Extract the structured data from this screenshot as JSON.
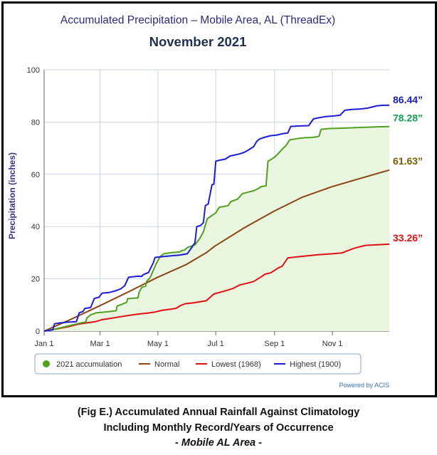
{
  "chart_data": {
    "type": "line",
    "title": "Accumulated Precipitation – Mobile Area, AL (ThreadEx)",
    "subtitle": "November 2021",
    "ylabel": "Precipitation (inches)",
    "xlabel": "",
    "ylim": [
      0,
      100
    ],
    "xlim_day_of_year": [
      1,
      365
    ],
    "y_ticks": [
      "0",
      "20",
      "40",
      "60",
      "80",
      "100"
    ],
    "x_ticks": [
      {
        "day": 1,
        "label": "Jan 1"
      },
      {
        "day": 60,
        "label": "Mar 1"
      },
      {
        "day": 121,
        "label": "May 1"
      },
      {
        "day": 182,
        "label": "Jul 1"
      },
      {
        "day": 244,
        "label": "Sep 1"
      },
      {
        "day": 305,
        "label": "Nov 1"
      }
    ],
    "grid": true,
    "legend_position": "bottom",
    "credit": "Powered by ACIS",
    "series": [
      {
        "name": "2021 accumulation",
        "color": "#52a01f",
        "fill": "#e9f5df",
        "end_label": "78.28”",
        "end_label_color": "#13a055",
        "points": [
          [
            1,
            0
          ],
          [
            8,
            0.4
          ],
          [
            14,
            0.9
          ],
          [
            22,
            1.6
          ],
          [
            30,
            2.3
          ],
          [
            38,
            3.0
          ],
          [
            45,
            3.5
          ],
          [
            46,
            5.0
          ],
          [
            50,
            6.2
          ],
          [
            56,
            7.0
          ],
          [
            62,
            7.2
          ],
          [
            70,
            7.5
          ],
          [
            77,
            7.8
          ],
          [
            78,
            9.6
          ],
          [
            84,
            10.4
          ],
          [
            88,
            11.0
          ],
          [
            89,
            12.4
          ],
          [
            96,
            12.6
          ],
          [
            100,
            12.7
          ],
          [
            101,
            14.7
          ],
          [
            104,
            16.8
          ],
          [
            108,
            17.2
          ],
          [
            109,
            19.0
          ],
          [
            113,
            20.6
          ],
          [
            116,
            23.2
          ],
          [
            119,
            25.6
          ],
          [
            123,
            28.4
          ],
          [
            127,
            29.6
          ],
          [
            135,
            30.0
          ],
          [
            144,
            30.3
          ],
          [
            146,
            30.8
          ],
          [
            149,
            31.0
          ],
          [
            152,
            32.0
          ],
          [
            160,
            33.0
          ],
          [
            165,
            35.4
          ],
          [
            169,
            38.0
          ],
          [
            173,
            43.0
          ],
          [
            177,
            44.0
          ],
          [
            182,
            45.2
          ],
          [
            184,
            46.5
          ],
          [
            186,
            47.4
          ],
          [
            195,
            48.0
          ],
          [
            198,
            49.6
          ],
          [
            205,
            50.5
          ],
          [
            210,
            52.6
          ],
          [
            216,
            53.2
          ],
          [
            222,
            53.7
          ],
          [
            227,
            54.6
          ],
          [
            230,
            55.3
          ],
          [
            235,
            55.6
          ],
          [
            237,
            65.0
          ],
          [
            240,
            65.6
          ],
          [
            244,
            66.6
          ],
          [
            247,
            67.6
          ],
          [
            252,
            69.6
          ],
          [
            256,
            71.0
          ],
          [
            260,
            73.2
          ],
          [
            265,
            73.5
          ],
          [
            270,
            73.8
          ],
          [
            276,
            74.0
          ],
          [
            282,
            74.1
          ],
          [
            288,
            74.3
          ],
          [
            291,
            74.6
          ],
          [
            293,
            77.2
          ],
          [
            300,
            77.5
          ],
          [
            320,
            77.7
          ],
          [
            340,
            78.0
          ],
          [
            355,
            78.2
          ],
          [
            365,
            78.28
          ]
        ]
      },
      {
        "name": "Normal",
        "color": "#8b4513",
        "end_label": "61.63”",
        "end_label_color": "#7a5a00",
        "points": [
          [
            1,
            0
          ],
          [
            31,
            4.8
          ],
          [
            59,
            9.6
          ],
          [
            90,
            15.0
          ],
          [
            120,
            20.5
          ],
          [
            151,
            25.5
          ],
          [
            172,
            30.0
          ],
          [
            181,
            32.5
          ],
          [
            212,
            39.5
          ],
          [
            243,
            45.8
          ],
          [
            273,
            51.2
          ],
          [
            304,
            55.2
          ],
          [
            334,
            58.4
          ],
          [
            365,
            61.63
          ]
        ]
      },
      {
        "name": "Lowest (1968)",
        "color": "#e01010",
        "end_label": "33.26”",
        "end_label_color": "#e01010",
        "points": [
          [
            1,
            0
          ],
          [
            9,
            0.5
          ],
          [
            18,
            1.1
          ],
          [
            28,
            1.8
          ],
          [
            36,
            2.6
          ],
          [
            45,
            3.1
          ],
          [
            55,
            3.6
          ],
          [
            62,
            4.4
          ],
          [
            70,
            4.8
          ],
          [
            80,
            5.4
          ],
          [
            90,
            6.0
          ],
          [
            100,
            6.5
          ],
          [
            110,
            6.9
          ],
          [
            118,
            7.3
          ],
          [
            126,
            8.0
          ],
          [
            133,
            8.3
          ],
          [
            140,
            8.7
          ],
          [
            145,
            9.8
          ],
          [
            150,
            10.5
          ],
          [
            158,
            10.8
          ],
          [
            165,
            11.2
          ],
          [
            172,
            11.6
          ],
          [
            180,
            14.2
          ],
          [
            186,
            14.8
          ],
          [
            193,
            15.5
          ],
          [
            200,
            16.3
          ],
          [
            207,
            17.6
          ],
          [
            215,
            18.3
          ],
          [
            222,
            19.0
          ],
          [
            230,
            20.8
          ],
          [
            234,
            21.8
          ],
          [
            240,
            22.3
          ],
          [
            248,
            24.2
          ],
          [
            252,
            24.8
          ],
          [
            258,
            28.0
          ],
          [
            265,
            28.3
          ],
          [
            275,
            28.7
          ],
          [
            290,
            29.2
          ],
          [
            305,
            29.6
          ],
          [
            315,
            29.9
          ],
          [
            322,
            30.9
          ],
          [
            328,
            31.7
          ],
          [
            333,
            32.2
          ],
          [
            340,
            32.8
          ],
          [
            350,
            33.0
          ],
          [
            365,
            33.26
          ]
        ]
      },
      {
        "name": "Highest (1900)",
        "color": "#1c1cd8",
        "end_label": "86.44”",
        "end_label_color": "#1a1ab4",
        "points": [
          [
            1,
            0
          ],
          [
            10,
            0.5
          ],
          [
            12,
            2.8
          ],
          [
            17,
            3.1
          ],
          [
            25,
            3.4
          ],
          [
            35,
            3.6
          ],
          [
            38,
            7.0
          ],
          [
            42,
            7.5
          ],
          [
            44,
            8.7
          ],
          [
            50,
            9.0
          ],
          [
            54,
            12.5
          ],
          [
            59,
            13.0
          ],
          [
            62,
            14.5
          ],
          [
            70,
            14.8
          ],
          [
            77,
            15.5
          ],
          [
            82,
            16.2
          ],
          [
            86,
            17.4
          ],
          [
            90,
            20.6
          ],
          [
            100,
            21.0
          ],
          [
            104,
            20.9
          ],
          [
            105,
            21.5
          ],
          [
            108,
            22.0
          ],
          [
            111,
            22.4
          ],
          [
            116,
            26.0
          ],
          [
            118,
            28.2
          ],
          [
            126,
            28.5
          ],
          [
            135,
            28.8
          ],
          [
            144,
            29.1
          ],
          [
            152,
            29.6
          ],
          [
            160,
            33.8
          ],
          [
            162,
            40.0
          ],
          [
            166,
            40.4
          ],
          [
            169,
            41.5
          ],
          [
            171,
            48.0
          ],
          [
            174,
            48.6
          ],
          [
            178,
            56.0
          ],
          [
            180,
            56.2
          ],
          [
            182,
            65.0
          ],
          [
            186,
            65.4
          ],
          [
            192,
            65.8
          ],
          [
            197,
            67.0
          ],
          [
            207,
            67.8
          ],
          [
            212,
            68.4
          ],
          [
            216,
            69.2
          ],
          [
            222,
            70.6
          ],
          [
            225,
            72.5
          ],
          [
            228,
            73.5
          ],
          [
            232,
            74.0
          ],
          [
            240,
            74.8
          ],
          [
            246,
            75.0
          ],
          [
            252,
            75.5
          ],
          [
            258,
            75.8
          ],
          [
            261,
            78.3
          ],
          [
            270,
            78.5
          ],
          [
            280,
            78.6
          ],
          [
            285,
            81.2
          ],
          [
            290,
            81.6
          ],
          [
            298,
            82.1
          ],
          [
            305,
            82.3
          ],
          [
            313,
            82.6
          ],
          [
            318,
            84.5
          ],
          [
            325,
            84.8
          ],
          [
            334,
            85.0
          ],
          [
            342,
            85.3
          ],
          [
            352,
            86.2
          ],
          [
            358,
            86.4
          ],
          [
            365,
            86.44
          ]
        ]
      }
    ]
  },
  "caption": {
    "line1": "(Fig E.) Accumulated Annual Rainfall Against  Climatology",
    "line2": "Including Monthly Record/Years of Occurrence",
    "line3": "- Mobile AL Area -"
  }
}
